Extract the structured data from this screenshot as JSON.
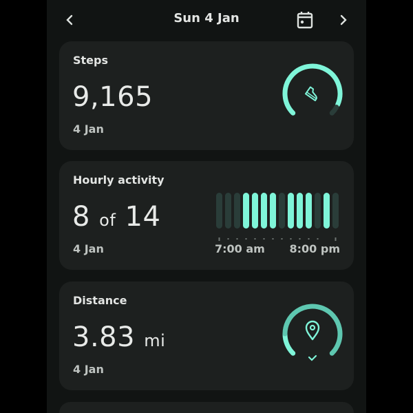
{
  "header": {
    "title": "Sun 4 Jan",
    "prev_icon": "chevron-left-icon",
    "calendar_icon": "calendar-icon",
    "next_icon": "chevron-right-icon"
  },
  "colors": {
    "accent": "#7ff5d9",
    "accent_dim": "#2a3d39",
    "distance": "#5ec7b0"
  },
  "steps": {
    "label": "Steps",
    "value": "9,165",
    "date": "4 Jan",
    "progress": 0.92,
    "icon": "shoe-icon"
  },
  "hourly": {
    "label": "Hourly activity",
    "value_num": "8",
    "value_of": "of",
    "value_total": "14",
    "date": "4 Jan",
    "hours_active": [
      false,
      false,
      false,
      true,
      true,
      true,
      true,
      false,
      true,
      true,
      true,
      false,
      true,
      false
    ],
    "start_label": "7:00 am",
    "end_label": "8:00 pm"
  },
  "distance": {
    "label": "Distance",
    "value": "3.83",
    "unit": "mi",
    "date": "4 Jan",
    "progress": 1.0,
    "icon": "location-pin-icon",
    "goal_icon": "check-icon"
  }
}
